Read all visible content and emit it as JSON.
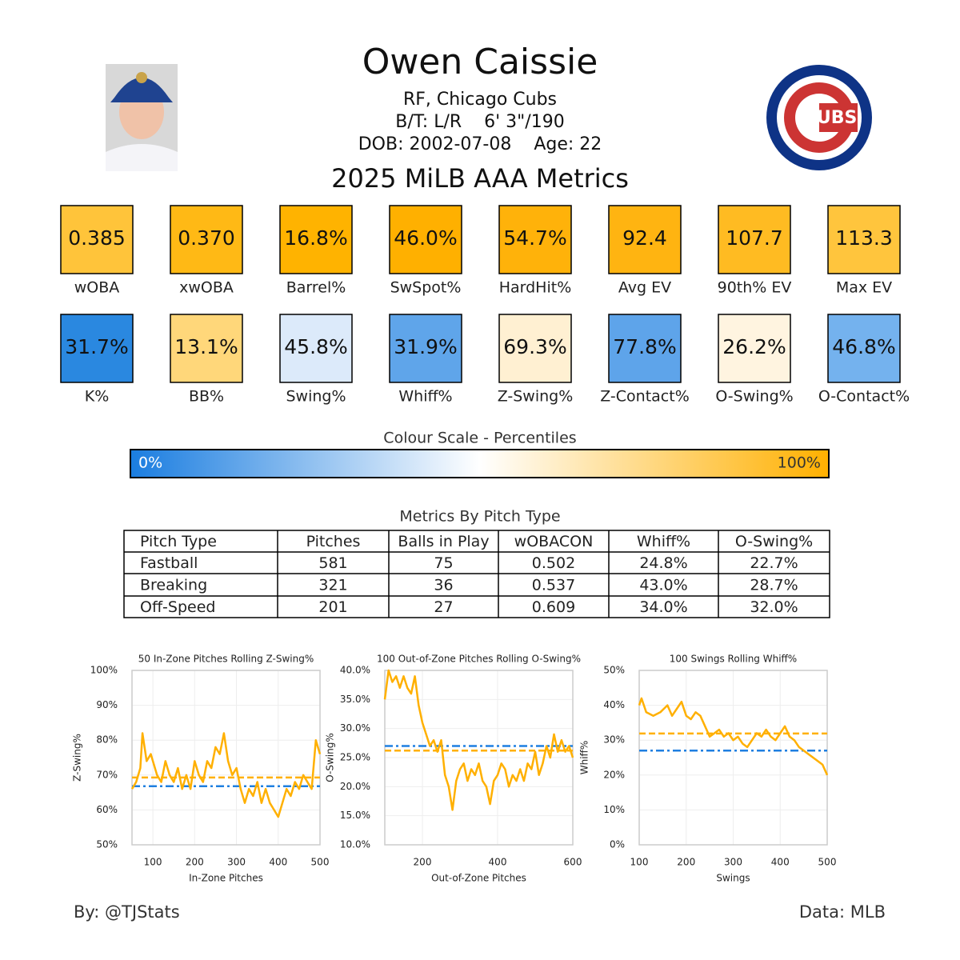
{
  "header": {
    "name": "Owen Caissie",
    "position": "RF, Chicago Cubs",
    "bio": "B/T: L/R    6' 3\"/190",
    "dob": "DOB: 2002-07-08    Age: 22",
    "subtitle": "2025 MiLB AAA Metrics",
    "logo_text": "CUBS"
  },
  "metrics": [
    {
      "value": "0.385",
      "label": "wOBA",
      "color": "#ffc43a"
    },
    {
      "value": "0.370",
      "label": "xwOBA",
      "color": "#ffb915"
    },
    {
      "value": "16.8%",
      "label": "Barrel%",
      "color": "#ffb300"
    },
    {
      "value": "46.0%",
      "label": "SwSpot%",
      "color": "#ffb000"
    },
    {
      "value": "54.7%",
      "label": "HardHit%",
      "color": "#ffb20a"
    },
    {
      "value": "92.4",
      "label": "Avg EV",
      "color": "#ffb411"
    },
    {
      "value": "107.7",
      "label": "90th% EV",
      "color": "#ffbb22"
    },
    {
      "value": "113.3",
      "label": "Max EV",
      "color": "#ffc53d"
    },
    {
      "value": "31.7%",
      "label": "K%",
      "color": "#2a88e0"
    },
    {
      "value": "13.1%",
      "label": "BB%",
      "color": "#ffd77a"
    },
    {
      "value": "45.8%",
      "label": "Swing%",
      "color": "#dceafa"
    },
    {
      "value": "31.9%",
      "label": "Whiff%",
      "color": "#5fa5ea"
    },
    {
      "value": "69.3%",
      "label": "Z-Swing%",
      "color": "#fff0d2"
    },
    {
      "value": "77.8%",
      "label": "Z-Contact%",
      "color": "#5ea4ea"
    },
    {
      "value": "26.2%",
      "label": "O-Swing%",
      "color": "#fff4e0"
    },
    {
      "value": "46.8%",
      "label": "O-Contact%",
      "color": "#74b2ee"
    }
  ],
  "colour_scale": {
    "title": "Colour Scale - Percentiles",
    "min_label": "0%",
    "max_label": "100%"
  },
  "table": {
    "title": "Metrics By Pitch Type",
    "columns": [
      "Pitch Type",
      "Pitches",
      "Balls in Play",
      "wOBACON",
      "Whiff%",
      "O-Swing%"
    ],
    "rows": [
      [
        "Fastball",
        "581",
        "75",
        "0.502",
        "24.8%",
        "22.7%"
      ],
      [
        "Breaking",
        "321",
        "36",
        "0.537",
        "43.0%",
        "28.7%"
      ],
      [
        "Off-Speed",
        "201",
        "27",
        "0.609",
        "34.0%",
        "32.0%"
      ]
    ]
  },
  "chart_data": [
    {
      "type": "line",
      "title": "50 In-Zone Pitches Rolling Z-Swing%",
      "x_label": "In-Zone Pitches",
      "y_label": "Z-Swing%",
      "color": "#ffb000",
      "grid": true,
      "x": [
        50,
        60,
        70,
        75,
        85,
        95,
        110,
        120,
        130,
        140,
        150,
        160,
        170,
        180,
        190,
        200,
        210,
        220,
        230,
        240,
        250,
        260,
        270,
        280,
        290,
        300,
        310,
        320,
        330,
        340,
        350,
        360,
        370,
        380,
        390,
        400,
        410,
        420,
        430,
        440,
        450,
        460,
        470,
        480,
        490,
        500
      ],
      "values": [
        66,
        68,
        72,
        82,
        74,
        76,
        70,
        68,
        74,
        70,
        68,
        72,
        66,
        70,
        66,
        74,
        70,
        68,
        74,
        72,
        78,
        76,
        82,
        74,
        70,
        72,
        66,
        62,
        66,
        64,
        68,
        62,
        66,
        62,
        60,
        58,
        62,
        66,
        64,
        68,
        66,
        70,
        68,
        66,
        80,
        76
      ],
      "reference_lines": [
        {
          "value": 66.8,
          "color": "#1f7fe0",
          "style": "dashdot"
        },
        {
          "value": 69.3,
          "color": "#ffb000",
          "style": "dash"
        }
      ],
      "xlim": [
        50,
        500
      ],
      "xticks": [
        100,
        200,
        300,
        400,
        500
      ],
      "ylim": [
        50,
        100
      ],
      "yticks": [
        {
          "value": 50,
          "label": "50%"
        },
        {
          "value": 60,
          "label": "60%"
        },
        {
          "value": 70,
          "label": "70%"
        },
        {
          "value": 80,
          "label": "80%"
        },
        {
          "value": 90,
          "label": "90%"
        },
        {
          "value": 100,
          "label": "100%"
        }
      ]
    },
    {
      "type": "line",
      "title": "100 Out-of-Zone Pitches Rolling O-Swing%",
      "x_label": "Out-of-Zone Pitches",
      "y_label": "O-Swing%",
      "color": "#ffb000",
      "grid": true,
      "x": [
        100,
        110,
        120,
        130,
        140,
        150,
        160,
        170,
        180,
        190,
        200,
        210,
        220,
        230,
        240,
        250,
        260,
        270,
        280,
        290,
        300,
        310,
        320,
        330,
        340,
        350,
        360,
        370,
        380,
        390,
        400,
        410,
        420,
        430,
        440,
        450,
        460,
        470,
        480,
        490,
        500,
        510,
        520,
        530,
        540,
        550,
        560,
        570,
        580,
        590,
        600
      ],
      "values": [
        35,
        40,
        38,
        39,
        37,
        39,
        37,
        36,
        39,
        34,
        31,
        29,
        27,
        28,
        26,
        28,
        22,
        20,
        16,
        21,
        23,
        24,
        21,
        23,
        22,
        24,
        21,
        20,
        17,
        21,
        22,
        24,
        23,
        20,
        22,
        21,
        23,
        21,
        24,
        23,
        26,
        22,
        24,
        27,
        25,
        29,
        26,
        28,
        26,
        27,
        25
      ],
      "reference_lines": [
        {
          "value": 27,
          "color": "#1f7fe0",
          "style": "dashdot"
        },
        {
          "value": 26.2,
          "color": "#ffb000",
          "style": "dash"
        }
      ],
      "xlim": [
        100,
        600
      ],
      "xticks": [
        200,
        400,
        600
      ],
      "ylim": [
        10,
        40
      ],
      "yticks": [
        {
          "value": 10,
          "label": "10.0%"
        },
        {
          "value": 15,
          "label": "15.0%"
        },
        {
          "value": 20,
          "label": "20.0%"
        },
        {
          "value": 25,
          "label": "25.0%"
        },
        {
          "value": 30,
          "label": "30.0%"
        },
        {
          "value": 35,
          "label": "35.0%"
        },
        {
          "value": 40,
          "label": "40.0%"
        }
      ]
    },
    {
      "type": "line",
      "title": "100 Swings Rolling Whiff%",
      "x_label": "Swings",
      "y_label": "Whiff%",
      "color": "#ffb000",
      "grid": true,
      "x": [
        100,
        105,
        115,
        130,
        145,
        160,
        170,
        180,
        190,
        200,
        210,
        220,
        230,
        240,
        250,
        260,
        270,
        280,
        290,
        300,
        310,
        320,
        330,
        340,
        350,
        360,
        370,
        380,
        390,
        400,
        410,
        420,
        430,
        440,
        450,
        460,
        470,
        480,
        490,
        500
      ],
      "values": [
        40,
        42,
        38,
        37,
        38,
        40,
        37,
        39,
        41,
        37,
        36,
        38,
        37,
        34,
        31,
        32,
        33,
        31,
        32,
        30,
        31,
        29,
        28,
        30,
        32,
        31,
        33,
        31,
        30,
        32,
        34,
        31,
        30,
        28,
        27,
        26,
        25,
        24,
        23,
        20
      ],
      "reference_lines": [
        {
          "value": 27,
          "color": "#1f7fe0",
          "style": "dashdot"
        },
        {
          "value": 31.9,
          "color": "#ffb000",
          "style": "dash"
        }
      ],
      "xlim": [
        100,
        500
      ],
      "xticks": [
        100,
        200,
        300,
        400,
        500
      ],
      "ylim": [
        0,
        50
      ],
      "yticks": [
        {
          "value": 0,
          "label": "0%"
        },
        {
          "value": 10,
          "label": "10%"
        },
        {
          "value": 20,
          "label": "20%"
        },
        {
          "value": 30,
          "label": "30%"
        },
        {
          "value": 40,
          "label": "40%"
        },
        {
          "value": 50,
          "label": "50%"
        }
      ]
    }
  ],
  "footer": {
    "left": "By: @TJStats",
    "right": "Data: MLB"
  }
}
